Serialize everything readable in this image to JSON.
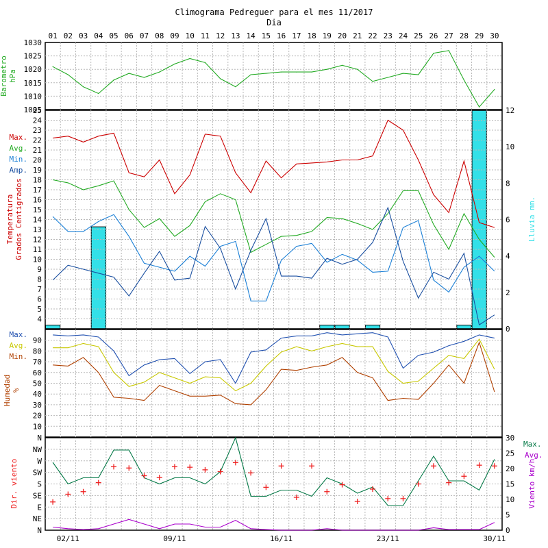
{
  "title": "Climograma Pedreguer para el mes 11/2017",
  "xlabel": "Dia",
  "colors": {
    "pressure": "#22aa22",
    "temp_max": "#cc0000",
    "temp_avg": "#22aa22",
    "temp_min": "#1a7fd6",
    "temp_amp": "#1a4fa0",
    "rain": "#33e0e8",
    "hum_max": "#2050b0",
    "hum_avg": "#c8c800",
    "hum_min": "#b04000",
    "wind_dir": "#ee2020",
    "wind_max": "#007744",
    "wind_avg": "#aa00cc"
  },
  "chart_data": [
    {
      "type": "line",
      "ylabel": "Barometro\nhPa",
      "ylim": [
        1005,
        1030
      ],
      "y_ticks": [
        "1005",
        "1010",
        "1015",
        "1020",
        "1025",
        "1030"
      ],
      "x_top_labels": [
        "01",
        "02",
        "03",
        "04",
        "05",
        "06",
        "07",
        "08",
        "09",
        "10",
        "11",
        "12",
        "13",
        "14",
        "15",
        "16",
        "17",
        "18",
        "19",
        "20",
        "21",
        "22",
        "23",
        "24",
        "25",
        "26",
        "27",
        "28",
        "29",
        "30"
      ],
      "series": [
        {
          "values": [
            1021,
            1018,
            1013.5,
            1011,
            1016,
            1018.5,
            1017,
            1019,
            1022,
            1024,
            1022.5,
            1016.5,
            1013.5,
            1018,
            1018.5,
            1019,
            1019,
            1019,
            1020,
            1021.5,
            1020,
            1015.5,
            1017,
            1018.5,
            1018,
            1026,
            1027,
            1016,
            1006,
            1012.5
          ]
        }
      ]
    },
    {
      "type": "line",
      "ylabel_left": "Temperatura\nGrados Centigrados",
      "ylabel_right": "Lluvia mm.",
      "ylim": [
        3,
        25
      ],
      "ylim_right": [
        0,
        12
      ],
      "legend": [
        "Max.",
        "Avg.",
        "Min.",
        "Amp."
      ],
      "series": [
        {
          "name": "Max.",
          "values": [
            22.2,
            22.4,
            21.8,
            22.4,
            22.7,
            18.7,
            18.3,
            20.0,
            16.6,
            18.5,
            22.6,
            22.4,
            18.7,
            16.7,
            19.9,
            18.2,
            19.6,
            19.7,
            19.8,
            20.0,
            20.0,
            20.4,
            24.0,
            23.0,
            20.0,
            16.5,
            14.7,
            19.9,
            13.7,
            13.2
          ]
        },
        {
          "name": "Avg.",
          "values": [
            18.0,
            17.7,
            17.0,
            17.4,
            17.9,
            15.0,
            13.2,
            14.1,
            12.3,
            13.4,
            15.8,
            16.6,
            16.0,
            10.7,
            11.5,
            12.3,
            12.4,
            12.8,
            14.2,
            14.1,
            13.6,
            13.0,
            14.6,
            16.9,
            16.9,
            13.5,
            11.0,
            14.6,
            12.0,
            10.2
          ]
        },
        {
          "name": "Min.",
          "values": [
            14.3,
            12.8,
            12.8,
            13.8,
            14.5,
            12.3,
            9.6,
            9.2,
            8.8,
            10.3,
            9.3,
            11.3,
            11.8,
            5.8,
            5.8,
            9.9,
            11.3,
            11.6,
            9.7,
            10.5,
            9.9,
            8.7,
            8.8,
            13.2,
            13.9,
            7.9,
            6.7,
            9.2,
            10.3,
            8.8
          ]
        },
        {
          "name": "Amp.",
          "values": [
            7.9,
            9.4,
            9.0,
            8.6,
            8.2,
            6.3,
            8.6,
            10.8,
            7.9,
            8.1,
            13.3,
            11.1,
            7.0,
            10.9,
            14.1,
            8.3,
            8.3,
            8.1,
            10.1,
            9.5,
            10.0,
            11.7,
            15.2,
            9.8,
            6.1,
            8.7,
            8.0,
            10.6,
            3.4,
            4.4
          ]
        },
        {
          "name": "Lluvia",
          "type": "bar",
          "values": [
            0.2,
            0,
            0,
            5.6,
            0,
            0,
            0,
            0,
            0,
            0,
            0,
            0,
            0,
            0,
            0,
            0,
            0,
            0,
            0.2,
            0.2,
            0,
            0.2,
            0,
            0,
            0,
            0,
            0,
            0.2,
            12,
            0
          ]
        }
      ]
    },
    {
      "type": "line",
      "ylabel": "Humedad\n%",
      "ylim": [
        0,
        100
      ],
      "legend": [
        "Max.",
        "Avg.",
        "Min."
      ],
      "series": [
        {
          "name": "Max.",
          "values": [
            95,
            94,
            95,
            93,
            80,
            57,
            67,
            72,
            73,
            59,
            70,
            72,
            50,
            79,
            81,
            92,
            94,
            94,
            97,
            95,
            96,
            97,
            93,
            64,
            76,
            79,
            85,
            89,
            95,
            92
          ]
        },
        {
          "name": "Avg.",
          "values": [
            83,
            83,
            87,
            84,
            60,
            47,
            51,
            60,
            55,
            50,
            56,
            55,
            43,
            50,
            66,
            79,
            84,
            80,
            84,
            87,
            84,
            84,
            61,
            50,
            52,
            64,
            76,
            73,
            91,
            63
          ]
        },
        {
          "name": "Min.",
          "values": [
            67,
            66,
            74,
            60,
            37,
            36,
            34,
            48,
            43,
            38,
            38,
            39,
            31,
            30,
            44,
            63,
            62,
            65,
            67,
            74,
            60,
            55,
            34,
            36,
            35,
            50,
            67,
            50,
            88,
            42
          ]
        }
      ]
    },
    {
      "type": "scatter",
      "ylabel_left": "Dir. viento",
      "ylabel_right": "Viento km/h",
      "y_dir_ticks": [
        "N",
        "NE",
        "E",
        "SE",
        "S",
        "SW",
        "W",
        "NW",
        "N"
      ],
      "ylim_right": [
        0,
        30
      ],
      "legend": [
        "Max.",
        "Avg."
      ],
      "x_bottom_labels": [
        "02/11",
        "09/11",
        "16/11",
        "23/11",
        "30/11"
      ],
      "wind_direction_deg": [
        110,
        140,
        150,
        185,
        247,
        242,
        212,
        205,
        247,
        245,
        235,
        228,
        263,
        223,
        167,
        250,
        128,
        250,
        150,
        177,
        112,
        160,
        123,
        123,
        180,
        250,
        185,
        210,
        253,
        250
      ],
      "series": [
        {
          "name": "Max.",
          "values": [
            22,
            15,
            17,
            17,
            26,
            26,
            17,
            15,
            17,
            17,
            15,
            19,
            30,
            11,
            11,
            13,
            13,
            11,
            17,
            15,
            12,
            14,
            8,
            8,
            16,
            24,
            16,
            16,
            13,
            23
          ]
        },
        {
          "name": "Avg.",
          "values": [
            1,
            0.5,
            0.2,
            0.5,
            2,
            3.5,
            2,
            0.5,
            2,
            2,
            1,
            1,
            3.2,
            0.5,
            0.2,
            0,
            0,
            0,
            0.5,
            0,
            0,
            0,
            0,
            0,
            0,
            0.8,
            0.2,
            0.2,
            0.2,
            2.5
          ]
        }
      ]
    }
  ]
}
